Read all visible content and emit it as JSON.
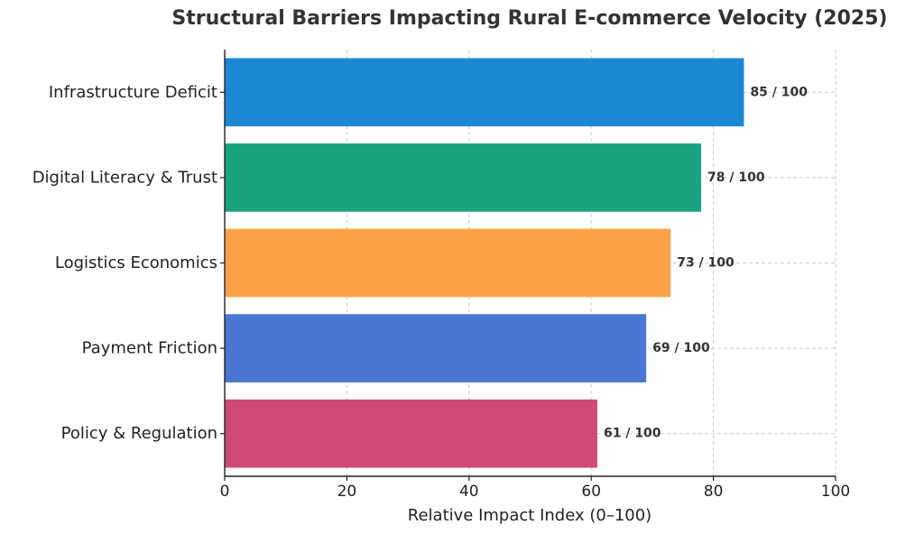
{
  "chart_data": {
    "type": "bar",
    "orientation": "horizontal",
    "title": "Structural Barriers Impacting Rural E-commerce Velocity (2025)",
    "xlabel": "Relative Impact Index (0–100)",
    "ylabel": "",
    "categories": [
      "Infrastructure Deficit",
      "Digital Literacy & Trust",
      "Logistics Economics",
      "Payment Friction",
      "Policy & Regulation"
    ],
    "values": [
      85,
      78,
      73,
      69,
      61
    ],
    "data_labels": [
      "85 / 100",
      "78 / 100",
      "73 / 100",
      "69 / 100",
      "61 / 100"
    ],
    "colors": [
      "#1c88d4",
      "#1aa37f",
      "#ffa24a",
      "#4a76d4",
      "#d04a77"
    ],
    "xlim": [
      0,
      100
    ],
    "xticks": [
      0,
      20,
      40,
      60,
      80,
      100
    ],
    "xtick_labels": [
      "0",
      "20",
      "40",
      "60",
      "80",
      "100"
    ],
    "grid": true,
    "grid_style": "dashed"
  }
}
